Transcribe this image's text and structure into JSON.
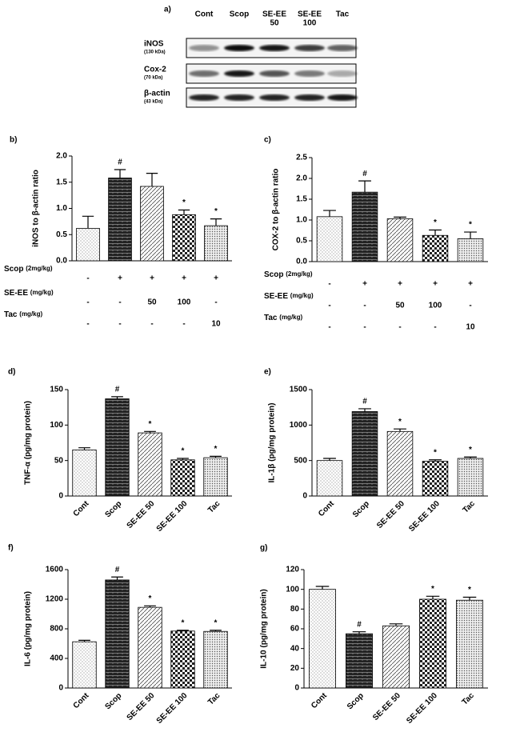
{
  "blot": {
    "label": "a)",
    "lanes": [
      [
        "Cont"
      ],
      [
        "Scop"
      ],
      [
        "SE-EE",
        "50"
      ],
      [
        "SE-EE",
        "100"
      ],
      [
        "Tac"
      ]
    ],
    "rows": [
      {
        "name": "iNOS",
        "size": "(130 kDa)"
      },
      {
        "name": "Cox-2",
        "size": "(70 kDa)"
      },
      {
        "name": "β-actin",
        "size": "(43 kDa)"
      }
    ]
  },
  "chart_data": [
    {
      "type": "bar",
      "panel": "b)",
      "ylabel": "iNOS to β-actin ratio",
      "values": [
        0.62,
        1.58,
        1.42,
        0.88,
        0.67
      ],
      "errors": [
        0.23,
        0.16,
        0.25,
        0.09,
        0.13
      ],
      "annotations": [
        null,
        "#",
        null,
        "*",
        "*"
      ],
      "ylim": [
        0,
        2
      ],
      "yticks": [
        {
          "value": 0,
          "label": "0.0"
        },
        {
          "value": 0.5,
          "label": "0.5"
        },
        {
          "value": 1,
          "label": "1.0"
        },
        {
          "value": 1.5,
          "label": "1.5"
        },
        {
          "value": 2,
          "label": "2.0"
        }
      ],
      "treatments": [
        {
          "name": "Scop",
          "unit": "(2mg/kg)",
          "doses": [
            "-",
            "+",
            "+",
            "+",
            "+"
          ]
        },
        {
          "name": "SE-EE",
          "unit": "(mg/kg)",
          "doses": [
            "-",
            "-",
            "50",
            "100",
            "-"
          ]
        },
        {
          "name": "Tac",
          "unit": "(mg/kg)",
          "doses": [
            "-",
            "-",
            "-",
            "-",
            "10"
          ]
        }
      ]
    },
    {
      "type": "bar",
      "panel": "c)",
      "ylabel": "COX-2 to β-actin ratio",
      "values": [
        1.08,
        1.67,
        1.03,
        0.63,
        0.55
      ],
      "errors": [
        0.15,
        0.27,
        0.04,
        0.13,
        0.16
      ],
      "annotations": [
        null,
        "#",
        null,
        "*",
        "*"
      ],
      "ylim": [
        0,
        2.5
      ],
      "yticks": [
        {
          "value": 0,
          "label": "0.0"
        },
        {
          "value": 0.5,
          "label": "0.5"
        },
        {
          "value": 1,
          "label": "1.0"
        },
        {
          "value": 1.5,
          "label": "1.5"
        },
        {
          "value": 2,
          "label": "2.0"
        },
        {
          "value": 2.5,
          "label": "2.5"
        }
      ],
      "treatments": [
        {
          "name": "Scop",
          "unit": "(2mg/kg)",
          "doses": [
            "-",
            "+",
            "+",
            "+",
            "+"
          ]
        },
        {
          "name": "SE-EE",
          "unit": "(mg/kg)",
          "doses": [
            "-",
            "-",
            "50",
            "100",
            "-"
          ]
        },
        {
          "name": "Tac",
          "unit": "(mg/kg)",
          "doses": [
            "-",
            "-",
            "-",
            "-",
            "10"
          ]
        }
      ]
    },
    {
      "type": "bar",
      "panel": "d)",
      "ylabel": "TNF-α (pg/mg protein)",
      "categories": [
        "Cont",
        "Scop",
        "SE-EE 50",
        "SE-EE 100",
        "Tac"
      ],
      "values": [
        65,
        137,
        89,
        51,
        54
      ],
      "errors": [
        3,
        3,
        2,
        2,
        2
      ],
      "annotations": [
        null,
        "#",
        "*",
        "*",
        "*"
      ],
      "ylim": [
        0,
        150
      ],
      "yticks": [
        0,
        50,
        100,
        150
      ]
    },
    {
      "type": "bar",
      "panel": "e)",
      "ylabel": "IL-1β (pg/mg protein)",
      "categories": [
        "Cont",
        "Scop",
        "SE-EE 50",
        "SE-EE 100",
        "Tac"
      ],
      "values": [
        500,
        1190,
        910,
        490,
        530
      ],
      "errors": [
        30,
        40,
        35,
        20,
        20
      ],
      "annotations": [
        null,
        "#",
        "*",
        "*",
        "*"
      ],
      "ylim": [
        0,
        1500
      ],
      "yticks": [
        0,
        500,
        1000,
        1500
      ]
    },
    {
      "type": "bar",
      "panel": "f)",
      "ylabel": "IL-6 (pg/mg protein)",
      "categories": [
        "Cont",
        "Scop",
        "SE-EE 50",
        "SE-EE 100",
        "Tac"
      ],
      "values": [
        625,
        1460,
        1090,
        770,
        765
      ],
      "errors": [
        20,
        40,
        20,
        10,
        15
      ],
      "annotations": [
        null,
        "#",
        "*",
        "*",
        "*"
      ],
      "ylim": [
        0,
        1600
      ],
      "yticks": [
        0,
        400,
        800,
        1200,
        1600
      ]
    },
    {
      "type": "bar",
      "panel": "g)",
      "ylabel": "IL-10 (pg/mg protein)",
      "categories": [
        "Cont",
        "Scop",
        "SE-EE 50",
        "SE-EE 100",
        "Tac"
      ],
      "values": [
        100,
        55,
        63,
        90,
        89
      ],
      "errors": [
        3,
        2,
        2,
        3,
        3
      ],
      "annotations": [
        null,
        "#",
        null,
        "*",
        "*"
      ],
      "ylim": [
        0,
        120
      ],
      "yticks": [
        0,
        20,
        40,
        60,
        80,
        100,
        120
      ]
    }
  ]
}
